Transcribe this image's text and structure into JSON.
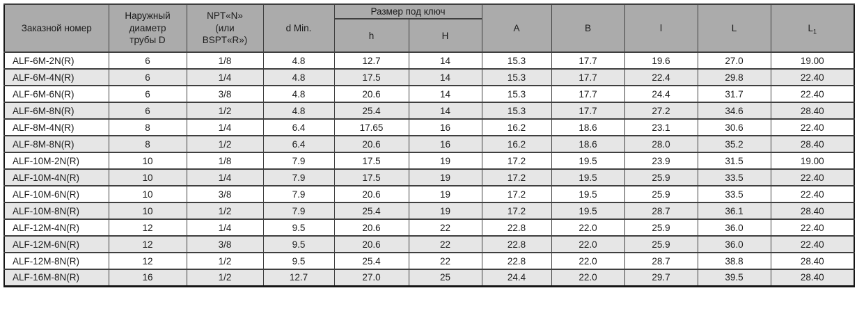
{
  "colors": {
    "header_bg": "#ababab",
    "row_alt_bg": "#e6e6e6",
    "grid_border": "#3f3f3f",
    "outer_border": "#161616",
    "text": "#1a1a1a"
  },
  "table": {
    "header": {
      "order_number": "Заказной номер",
      "outer_diameter": "Наружный\nдиаметр\nтрубы D",
      "thread": "NPT«N»\n(или\nBSPT«R»)",
      "d_min": "d Min.",
      "wrench_size_group": "Размер под ключ",
      "h_small": "h",
      "h_big": "H",
      "a": "A",
      "b": "B",
      "l_small": "l",
      "l_big": "L",
      "l1_main": "L",
      "l1_sub": "1"
    },
    "rows": [
      [
        "ALF-6M-2N(R)",
        "6",
        "1/8",
        "4.8",
        "12.7",
        "14",
        "15.3",
        "17.7",
        "19.6",
        "27.0",
        "19.00"
      ],
      [
        "ALF-6M-4N(R)",
        "6",
        "1/4",
        "4.8",
        "17.5",
        "14",
        "15.3",
        "17.7",
        "22.4",
        "29.8",
        "22.40"
      ],
      [
        "ALF-6M-6N(R)",
        "6",
        "3/8",
        "4.8",
        "20.6",
        "14",
        "15.3",
        "17.7",
        "24.4",
        "31.7",
        "22.40"
      ],
      [
        "ALF-6M-8N(R)",
        "6",
        "1/2",
        "4.8",
        "25.4",
        "14",
        "15.3",
        "17.7",
        "27.2",
        "34.6",
        "28.40"
      ],
      [
        "ALF-8M-4N(R)",
        "8",
        "1/4",
        "6.4",
        "17.65",
        "16",
        "16.2",
        "18.6",
        "23.1",
        "30.6",
        "22.40"
      ],
      [
        "ALF-8M-8N(R)",
        "8",
        "1/2",
        "6.4",
        "20.6",
        "16",
        "16.2",
        "18.6",
        "28.0",
        "35.2",
        "28.40"
      ],
      [
        "ALF-10M-2N(R)",
        "10",
        "1/8",
        "7.9",
        "17.5",
        "19",
        "17.2",
        "19.5",
        "23.9",
        "31.5",
        "19.00"
      ],
      [
        "ALF-10M-4N(R)",
        "10",
        "1/4",
        "7.9",
        "17.5",
        "19",
        "17.2",
        "19.5",
        "25.9",
        "33.5",
        "22.40"
      ],
      [
        "ALF-10M-6N(R)",
        "10",
        "3/8",
        "7.9",
        "20.6",
        "19",
        "17.2",
        "19.5",
        "25.9",
        "33.5",
        "22.40"
      ],
      [
        "ALF-10M-8N(R)",
        "10",
        "1/2",
        "7.9",
        "25.4",
        "19",
        "17.2",
        "19.5",
        "28.7",
        "36.1",
        "28.40"
      ],
      [
        "ALF-12M-4N(R)",
        "12",
        "1/4",
        "9.5",
        "20.6",
        "22",
        "22.8",
        "22.0",
        "25.9",
        "36.0",
        "22.40"
      ],
      [
        "ALF-12M-6N(R)",
        "12",
        "3/8",
        "9.5",
        "20.6",
        "22",
        "22.8",
        "22.0",
        "25.9",
        "36.0",
        "22.40"
      ],
      [
        "ALF-12M-8N(R)",
        "12",
        "1/2",
        "9.5",
        "25.4",
        "22",
        "22.8",
        "22.0",
        "28.7",
        "38.8",
        "28.40"
      ],
      [
        "ALF-16M-8N(R)",
        "16",
        "1/2",
        "12.7",
        "27.0",
        "25",
        "24.4",
        "22.0",
        "29.7",
        "39.5",
        "28.40"
      ]
    ]
  }
}
